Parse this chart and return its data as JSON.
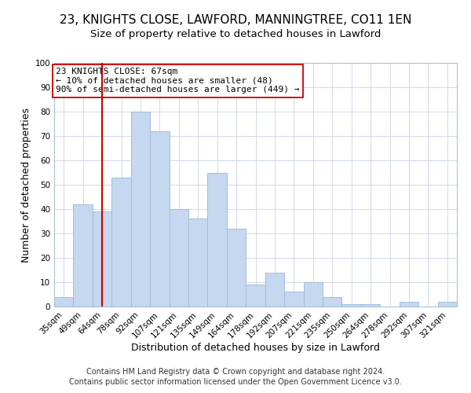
{
  "title": "23, KNIGHTS CLOSE, LAWFORD, MANNINGTREE, CO11 1EN",
  "subtitle": "Size of property relative to detached houses in Lawford",
  "xlabel": "Distribution of detached houses by size in Lawford",
  "ylabel": "Number of detached properties",
  "categories": [
    "35sqm",
    "49sqm",
    "64sqm",
    "78sqm",
    "92sqm",
    "107sqm",
    "121sqm",
    "135sqm",
    "149sqm",
    "164sqm",
    "178sqm",
    "192sqm",
    "207sqm",
    "221sqm",
    "235sqm",
    "250sqm",
    "264sqm",
    "278sqm",
    "292sqm",
    "307sqm",
    "321sqm"
  ],
  "values": [
    4,
    42,
    39,
    53,
    80,
    72,
    40,
    36,
    55,
    32,
    9,
    14,
    6,
    10,
    4,
    1,
    1,
    0,
    2,
    0,
    2
  ],
  "bar_color": "#c5d8f0",
  "bar_edge_color": "#a0bcd8",
  "vline_x_index": 2,
  "vline_color": "#cc0000",
  "annotation_text": "23 KNIGHTS CLOSE: 67sqm\n← 10% of detached houses are smaller (48)\n90% of semi-detached houses are larger (449) →",
  "annotation_box_edge_color": "#cc0000",
  "annotation_box_facecolor": "white",
  "ylim": [
    0,
    100
  ],
  "yticks": [
    0,
    10,
    20,
    30,
    40,
    50,
    60,
    70,
    80,
    90,
    100
  ],
  "footer_line1": "Contains HM Land Registry data © Crown copyright and database right 2024.",
  "footer_line2": "Contains public sector information licensed under the Open Government Licence v3.0.",
  "title_fontsize": 11,
  "subtitle_fontsize": 9.5,
  "axis_label_fontsize": 9,
  "tick_fontsize": 7.5,
  "annotation_fontsize": 8,
  "footer_fontsize": 7,
  "background_color": "#ffffff",
  "grid_color": "#d0d8e8"
}
